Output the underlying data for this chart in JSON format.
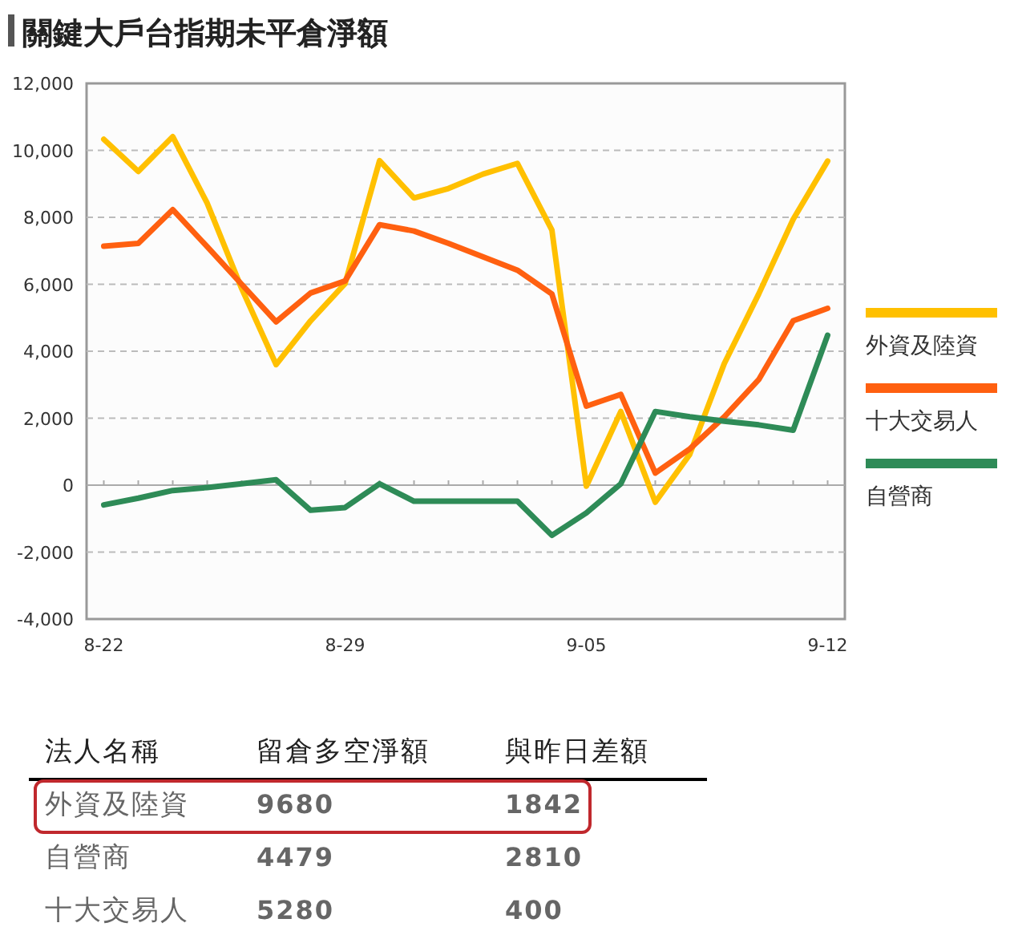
{
  "chart_data": {
    "type": "line",
    "title": "關鍵大戶台指期未平倉淨額",
    "categories": [
      "8-22",
      null,
      null,
      null,
      null,
      null,
      null,
      "8-29",
      null,
      null,
      null,
      null,
      null,
      null,
      "9-05",
      null,
      null,
      null,
      null,
      null,
      null,
      "9-12"
    ],
    "series": [
      {
        "name": "外資及陸資",
        "color": "#ffc000",
        "values": [
          10330,
          9370,
          10410,
          8420,
          5870,
          3600,
          4910,
          6020,
          9690,
          8580,
          8860,
          9290,
          9610,
          7620,
          -30,
          2200,
          -510,
          920,
          3630,
          5710,
          7940,
          9680
        ]
      },
      {
        "name": "十大交易人",
        "color": "#ff6010",
        "values": [
          7140,
          7220,
          8230,
          7120,
          6000,
          4880,
          5740,
          6100,
          7780,
          7590,
          7220,
          6820,
          6420,
          5710,
          2360,
          2710,
          360,
          1080,
          2040,
          3150,
          4910,
          5280
        ]
      },
      {
        "name": "自營商",
        "color": "#2e8b57",
        "values": [
          -590,
          -390,
          -160,
          -70,
          40,
          160,
          -750,
          -670,
          40,
          -480,
          -480,
          -480,
          -480,
          -1500,
          -830,
          40,
          2200,
          2040,
          1910,
          1800,
          1640,
          4479
        ]
      }
    ],
    "ylim": [
      -4000,
      12000
    ],
    "yticks": [
      {
        "value": -4000,
        "label": "-4,000"
      },
      {
        "value": -2000,
        "label": "-2,000"
      },
      0,
      {
        "value": 2000,
        "label": "2,000"
      },
      {
        "value": 4000,
        "label": "4,000"
      },
      {
        "value": 6000,
        "label": "6,000"
      },
      {
        "value": 8000,
        "label": "8,000"
      },
      {
        "value": 10000,
        "label": "10,000"
      },
      {
        "value": 12000,
        "label": "12,000"
      }
    ],
    "grid": "y",
    "legend": "right",
    "marker": "none",
    "line_style": "solid",
    "annotations": [
      "法人名稱",
      "留倉多空淨額",
      "與昨日差額",
      "外資及陸資",
      "9680",
      "1842",
      "自營商",
      "4479",
      "2810",
      "十大交易人",
      "5280",
      "400"
    ]
  }
}
